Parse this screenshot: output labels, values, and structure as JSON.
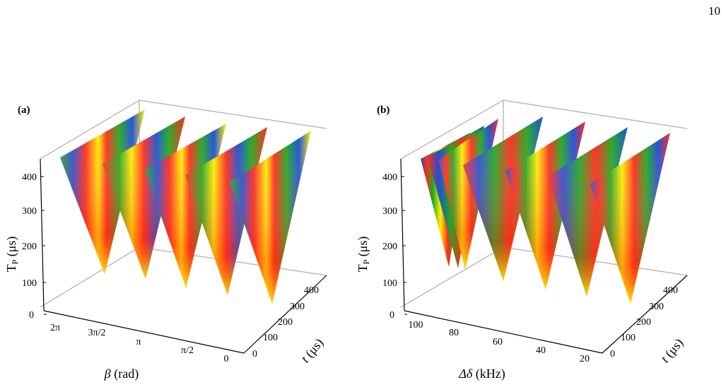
{
  "page_number": "10",
  "colors": [
    "#1e4fd8",
    "#ff2a1a",
    "#fff200",
    "#1faa1f",
    "#2b7a2b",
    "#ffffff"
  ],
  "panels": [
    {
      "label": "(a)",
      "zlabel_main": "T",
      "zlabel_sub": "P",
      "zlabel_unit": " (μs)",
      "xlabel_sym": "β",
      "xlabel_unit": " (rad)",
      "ylabel_sym": "t",
      "ylabel_unit": " (μs)",
      "z_ticks": [
        "0",
        "100",
        "200",
        "300",
        "400"
      ],
      "x_ticks": [
        "2π",
        "3π/2",
        "π",
        "π/2",
        "0"
      ],
      "y_ticks": [
        "0",
        "100",
        "200",
        "300",
        "400"
      ]
    },
    {
      "label": "(b)",
      "zlabel_main": "T",
      "zlabel_sub": "P",
      "zlabel_unit": " (μs)",
      "xlabel_sym": "Δδ",
      "xlabel_unit": " (kHz)",
      "ylabel_sym": "t",
      "ylabel_unit": " (μs)",
      "z_ticks": [
        "0",
        "100",
        "200",
        "300",
        "400"
      ],
      "x_ticks": [
        "100",
        "80",
        "60",
        "40",
        "20"
      ],
      "y_ticks": [
        "0",
        "100",
        "200",
        "300",
        "400"
      ]
    }
  ]
}
